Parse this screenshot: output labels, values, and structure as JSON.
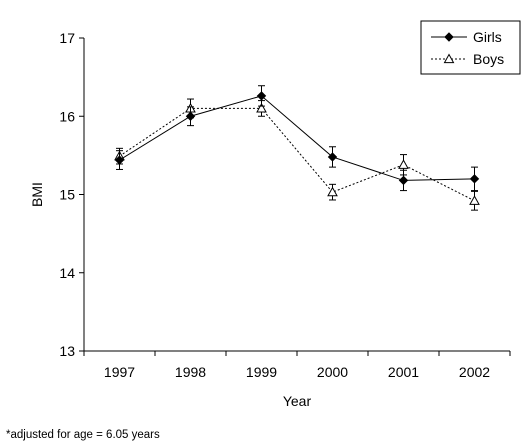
{
  "chart_data": {
    "type": "line",
    "xlabel": "Year",
    "ylabel": "BMI",
    "ylim": [
      13,
      17
    ],
    "yticks": [
      13,
      14,
      15,
      16,
      17
    ],
    "categories": [
      "1997",
      "1998",
      "1999",
      "2000",
      "2001",
      "2002"
    ],
    "series": [
      {
        "name": "Girls",
        "style": "solid",
        "marker": "diamond",
        "color": "#000000",
        "values": [
          15.44,
          16.0,
          16.26,
          15.48,
          15.18,
          15.2
        ],
        "error": [
          0.12,
          0.12,
          0.13,
          0.13,
          0.13,
          0.15
        ]
      },
      {
        "name": "Boys",
        "style": "dotted",
        "marker": "triangle-open",
        "color": "#000000",
        "values": [
          15.49,
          16.1,
          16.1,
          15.03,
          15.38,
          14.92
        ],
        "error": [
          0.1,
          0.12,
          0.1,
          0.1,
          0.13,
          0.12
        ]
      }
    ],
    "legend_position": "top-right",
    "grid": false,
    "footnote": "*adjusted for age = 6.05 years"
  }
}
